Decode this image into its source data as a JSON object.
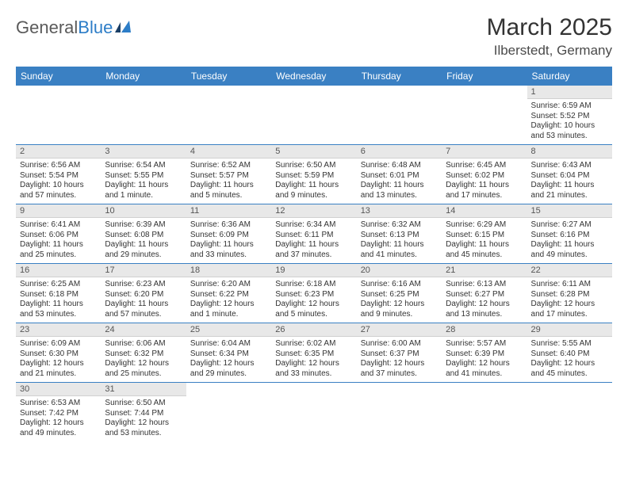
{
  "logo": {
    "word1": "General",
    "word2": "Blue"
  },
  "title": "March 2025",
  "location": "Ilberstedt, Germany",
  "header_bg": "#3a80c3",
  "header_fg": "#ffffff",
  "daynum_bg": "#e8e8e8",
  "border_color": "#3a80c3",
  "day_headers": [
    "Sunday",
    "Monday",
    "Tuesday",
    "Wednesday",
    "Thursday",
    "Friday",
    "Saturday"
  ],
  "weeks": [
    [
      null,
      null,
      null,
      null,
      null,
      null,
      {
        "n": "1",
        "sr": "Sunrise: 6:59 AM",
        "ss": "Sunset: 5:52 PM",
        "dl": "Daylight: 10 hours and 53 minutes."
      }
    ],
    [
      {
        "n": "2",
        "sr": "Sunrise: 6:56 AM",
        "ss": "Sunset: 5:54 PM",
        "dl": "Daylight: 10 hours and 57 minutes."
      },
      {
        "n": "3",
        "sr": "Sunrise: 6:54 AM",
        "ss": "Sunset: 5:55 PM",
        "dl": "Daylight: 11 hours and 1 minute."
      },
      {
        "n": "4",
        "sr": "Sunrise: 6:52 AM",
        "ss": "Sunset: 5:57 PM",
        "dl": "Daylight: 11 hours and 5 minutes."
      },
      {
        "n": "5",
        "sr": "Sunrise: 6:50 AM",
        "ss": "Sunset: 5:59 PM",
        "dl": "Daylight: 11 hours and 9 minutes."
      },
      {
        "n": "6",
        "sr": "Sunrise: 6:48 AM",
        "ss": "Sunset: 6:01 PM",
        "dl": "Daylight: 11 hours and 13 minutes."
      },
      {
        "n": "7",
        "sr": "Sunrise: 6:45 AM",
        "ss": "Sunset: 6:02 PM",
        "dl": "Daylight: 11 hours and 17 minutes."
      },
      {
        "n": "8",
        "sr": "Sunrise: 6:43 AM",
        "ss": "Sunset: 6:04 PM",
        "dl": "Daylight: 11 hours and 21 minutes."
      }
    ],
    [
      {
        "n": "9",
        "sr": "Sunrise: 6:41 AM",
        "ss": "Sunset: 6:06 PM",
        "dl": "Daylight: 11 hours and 25 minutes."
      },
      {
        "n": "10",
        "sr": "Sunrise: 6:39 AM",
        "ss": "Sunset: 6:08 PM",
        "dl": "Daylight: 11 hours and 29 minutes."
      },
      {
        "n": "11",
        "sr": "Sunrise: 6:36 AM",
        "ss": "Sunset: 6:09 PM",
        "dl": "Daylight: 11 hours and 33 minutes."
      },
      {
        "n": "12",
        "sr": "Sunrise: 6:34 AM",
        "ss": "Sunset: 6:11 PM",
        "dl": "Daylight: 11 hours and 37 minutes."
      },
      {
        "n": "13",
        "sr": "Sunrise: 6:32 AM",
        "ss": "Sunset: 6:13 PM",
        "dl": "Daylight: 11 hours and 41 minutes."
      },
      {
        "n": "14",
        "sr": "Sunrise: 6:29 AM",
        "ss": "Sunset: 6:15 PM",
        "dl": "Daylight: 11 hours and 45 minutes."
      },
      {
        "n": "15",
        "sr": "Sunrise: 6:27 AM",
        "ss": "Sunset: 6:16 PM",
        "dl": "Daylight: 11 hours and 49 minutes."
      }
    ],
    [
      {
        "n": "16",
        "sr": "Sunrise: 6:25 AM",
        "ss": "Sunset: 6:18 PM",
        "dl": "Daylight: 11 hours and 53 minutes."
      },
      {
        "n": "17",
        "sr": "Sunrise: 6:23 AM",
        "ss": "Sunset: 6:20 PM",
        "dl": "Daylight: 11 hours and 57 minutes."
      },
      {
        "n": "18",
        "sr": "Sunrise: 6:20 AM",
        "ss": "Sunset: 6:22 PM",
        "dl": "Daylight: 12 hours and 1 minute."
      },
      {
        "n": "19",
        "sr": "Sunrise: 6:18 AM",
        "ss": "Sunset: 6:23 PM",
        "dl": "Daylight: 12 hours and 5 minutes."
      },
      {
        "n": "20",
        "sr": "Sunrise: 6:16 AM",
        "ss": "Sunset: 6:25 PM",
        "dl": "Daylight: 12 hours and 9 minutes."
      },
      {
        "n": "21",
        "sr": "Sunrise: 6:13 AM",
        "ss": "Sunset: 6:27 PM",
        "dl": "Daylight: 12 hours and 13 minutes."
      },
      {
        "n": "22",
        "sr": "Sunrise: 6:11 AM",
        "ss": "Sunset: 6:28 PM",
        "dl": "Daylight: 12 hours and 17 minutes."
      }
    ],
    [
      {
        "n": "23",
        "sr": "Sunrise: 6:09 AM",
        "ss": "Sunset: 6:30 PM",
        "dl": "Daylight: 12 hours and 21 minutes."
      },
      {
        "n": "24",
        "sr": "Sunrise: 6:06 AM",
        "ss": "Sunset: 6:32 PM",
        "dl": "Daylight: 12 hours and 25 minutes."
      },
      {
        "n": "25",
        "sr": "Sunrise: 6:04 AM",
        "ss": "Sunset: 6:34 PM",
        "dl": "Daylight: 12 hours and 29 minutes."
      },
      {
        "n": "26",
        "sr": "Sunrise: 6:02 AM",
        "ss": "Sunset: 6:35 PM",
        "dl": "Daylight: 12 hours and 33 minutes."
      },
      {
        "n": "27",
        "sr": "Sunrise: 6:00 AM",
        "ss": "Sunset: 6:37 PM",
        "dl": "Daylight: 12 hours and 37 minutes."
      },
      {
        "n": "28",
        "sr": "Sunrise: 5:57 AM",
        "ss": "Sunset: 6:39 PM",
        "dl": "Daylight: 12 hours and 41 minutes."
      },
      {
        "n": "29",
        "sr": "Sunrise: 5:55 AM",
        "ss": "Sunset: 6:40 PM",
        "dl": "Daylight: 12 hours and 45 minutes."
      }
    ],
    [
      {
        "n": "30",
        "sr": "Sunrise: 6:53 AM",
        "ss": "Sunset: 7:42 PM",
        "dl": "Daylight: 12 hours and 49 minutes."
      },
      {
        "n": "31",
        "sr": "Sunrise: 6:50 AM",
        "ss": "Sunset: 7:44 PM",
        "dl": "Daylight: 12 hours and 53 minutes."
      },
      null,
      null,
      null,
      null,
      null
    ]
  ]
}
